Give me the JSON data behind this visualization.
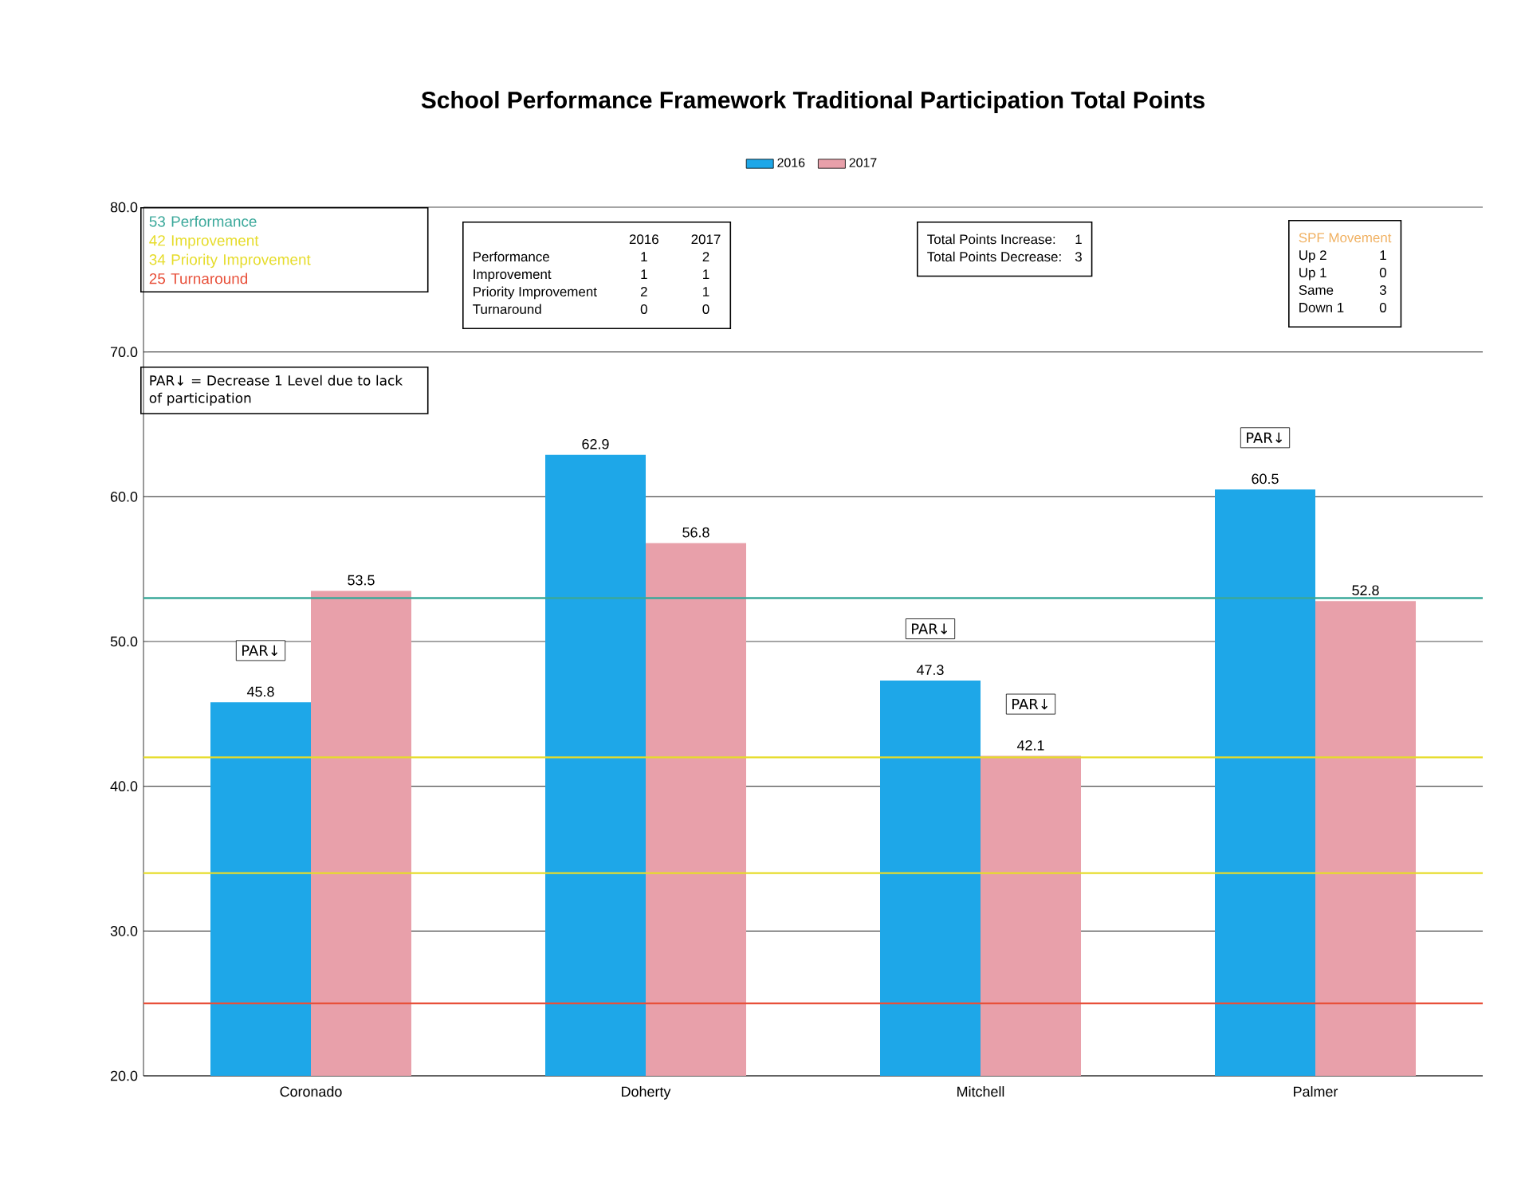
{
  "chart_data": {
    "type": "bar",
    "title": "School Performance Framework  Traditional   Participation  Total Points",
    "categories": [
      "Coronado",
      "Doherty",
      "Mitchell",
      "Palmer"
    ],
    "series": [
      {
        "name": "2016",
        "color": "#1ea7e8",
        "values": [
          45.8,
          62.9,
          47.3,
          60.5
        ]
      },
      {
        "name": "2017",
        "color": "#e8a0aa",
        "values": [
          53.5,
          56.8,
          42.1,
          52.8
        ]
      }
    ],
    "ylim": [
      20,
      80
    ],
    "yticks": [
      {
        "value": 20,
        "label": "20.0"
      },
      {
        "value": 30,
        "label": "30.0"
      },
      {
        "value": 40,
        "label": "40.0"
      },
      {
        "value": 50,
        "label": "50.0"
      },
      {
        "value": 60,
        "label": "60.0"
      },
      {
        "value": 70,
        "label": "70.0"
      },
      {
        "value": 80,
        "label": "80.0"
      }
    ],
    "grid": "y",
    "legend": "top",
    "data_labels": true,
    "ref_lines": [
      {
        "axis": "y",
        "value": 53,
        "color": "#3aa89a"
      },
      {
        "axis": "y",
        "value": 42,
        "color": "#e6dc2a"
      },
      {
        "axis": "y",
        "value": 34,
        "color": "#e6dc2a"
      },
      {
        "axis": "y",
        "value": 25,
        "color": "#e8503a"
      }
    ],
    "annotations": [
      "53 Performance",
      "42 Improvement",
      "34 Priority Improvement",
      "25 Turnaround",
      "PAR↓ = Decrease 1 Level due to lack of participation",
      "2016",
      "2017",
      "Performance",
      "1",
      "2",
      "Improvement",
      "1",
      "1",
      "Priority Improvement",
      "2",
      "1",
      "Turnaround",
      "0",
      "0",
      "Total Points Increase:",
      "1",
      "Total Points Decrease:",
      "3",
      "SPF Movement",
      "Up 2",
      "1",
      "Up 1",
      "0",
      "Same",
      "3",
      "Down 1",
      "0",
      "PAR↓",
      "PAR↓",
      "PAR↓",
      "PAR↓"
    ]
  }
}
